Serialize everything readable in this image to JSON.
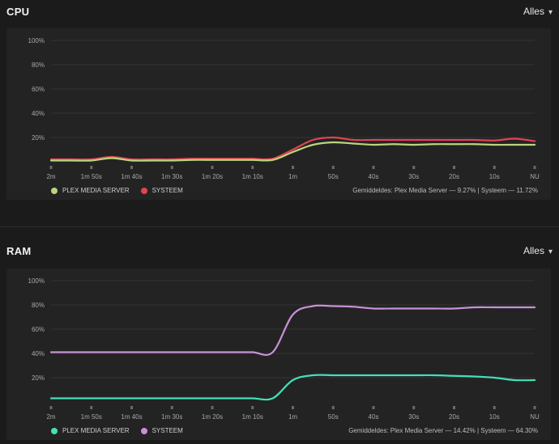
{
  "cpu": {
    "title": "CPU",
    "range_select": "Alles",
    "legend": [
      {
        "label": "PLEX MEDIA SERVER",
        "color": "#b9d67f"
      },
      {
        "label": "SYSTEEM",
        "color": "#e3434f"
      }
    ],
    "average": {
      "prefix": "Gemiddeldes:",
      "pms_label": "Plex Media Server",
      "pms_value": "9.27%",
      "sys_label": "Systeem",
      "sys_value": "11.72%"
    }
  },
  "ram": {
    "title": "RAM",
    "range_select": "Alles",
    "legend": [
      {
        "label": "PLEX MEDIA SERVER",
        "color": "#43e0b6"
      },
      {
        "label": "SYSTEEM",
        "color": "#c990d8"
      }
    ],
    "average": {
      "prefix": "Gemiddeldes:",
      "pms_label": "Plex Media Server",
      "pms_value": "14.42%",
      "sys_label": "Systeem",
      "sys_value": "64.30%"
    }
  },
  "chart_data": [
    {
      "type": "line",
      "title": "CPU",
      "x_tick_labels": [
        "2m",
        "1m 50s",
        "1m 40s",
        "1m 30s",
        "1m 20s",
        "1m 10s",
        "1m",
        "50s",
        "40s",
        "30s",
        "20s",
        "10s",
        "NU"
      ],
      "y_tick_labels": [
        "100%",
        "80%",
        "60%",
        "40%",
        "20%"
      ],
      "ylim": [
        0,
        100
      ],
      "x": [
        0,
        5,
        10,
        15,
        20,
        25,
        30,
        35,
        40,
        45,
        50,
        55,
        60,
        65,
        70,
        75,
        80,
        85,
        90,
        95,
        100,
        105,
        110,
        115,
        120
      ],
      "series": [
        {
          "name": "PLEX MEDIA SERVER",
          "color": "#b9d67f",
          "values": [
            1,
            1,
            1,
            3,
            1,
            1,
            1,
            1.5,
            1.5,
            1.5,
            1.5,
            1.5,
            8,
            14,
            16,
            15,
            14,
            14.5,
            14,
            14.5,
            14.5,
            14.5,
            14,
            14,
            14
          ]
        },
        {
          "name": "SYSTEEM",
          "color": "#e3434f",
          "values": [
            2,
            2,
            2,
            4,
            2,
            2,
            2,
            2.5,
            2.5,
            2.5,
            2.5,
            2.5,
            10,
            18,
            20,
            18,
            18,
            18,
            18,
            18,
            18,
            18,
            17.5,
            19,
            17
          ]
        }
      ]
    },
    {
      "type": "line",
      "title": "RAM",
      "x_tick_labels": [
        "2m",
        "1m 50s",
        "1m 40s",
        "1m 30s",
        "1m 20s",
        "1m 10s",
        "1m",
        "50s",
        "40s",
        "30s",
        "20s",
        "10s",
        "NU"
      ],
      "y_tick_labels": [
        "100%",
        "80%",
        "60%",
        "40%",
        "20%"
      ],
      "ylim": [
        0,
        100
      ],
      "x": [
        0,
        5,
        10,
        15,
        20,
        25,
        30,
        35,
        40,
        45,
        50,
        55,
        60,
        65,
        70,
        75,
        80,
        85,
        90,
        95,
        100,
        105,
        110,
        115,
        120
      ],
      "series": [
        {
          "name": "PLEX MEDIA SERVER",
          "color": "#43e0b6",
          "values": [
            3,
            3,
            3,
            3,
            3,
            3,
            3,
            3,
            3,
            3,
            3,
            3,
            18,
            22,
            22,
            22,
            22,
            22,
            22,
            22,
            21.5,
            21,
            20,
            18,
            18
          ]
        },
        {
          "name": "SYSTEEM",
          "color": "#c990d8",
          "values": [
            41,
            41,
            41,
            41,
            41,
            41,
            41,
            41,
            41,
            41,
            41,
            41,
            72,
            79,
            79,
            78.5,
            77,
            77,
            77,
            77,
            77,
            78,
            78,
            78,
            78
          ]
        }
      ]
    }
  ]
}
